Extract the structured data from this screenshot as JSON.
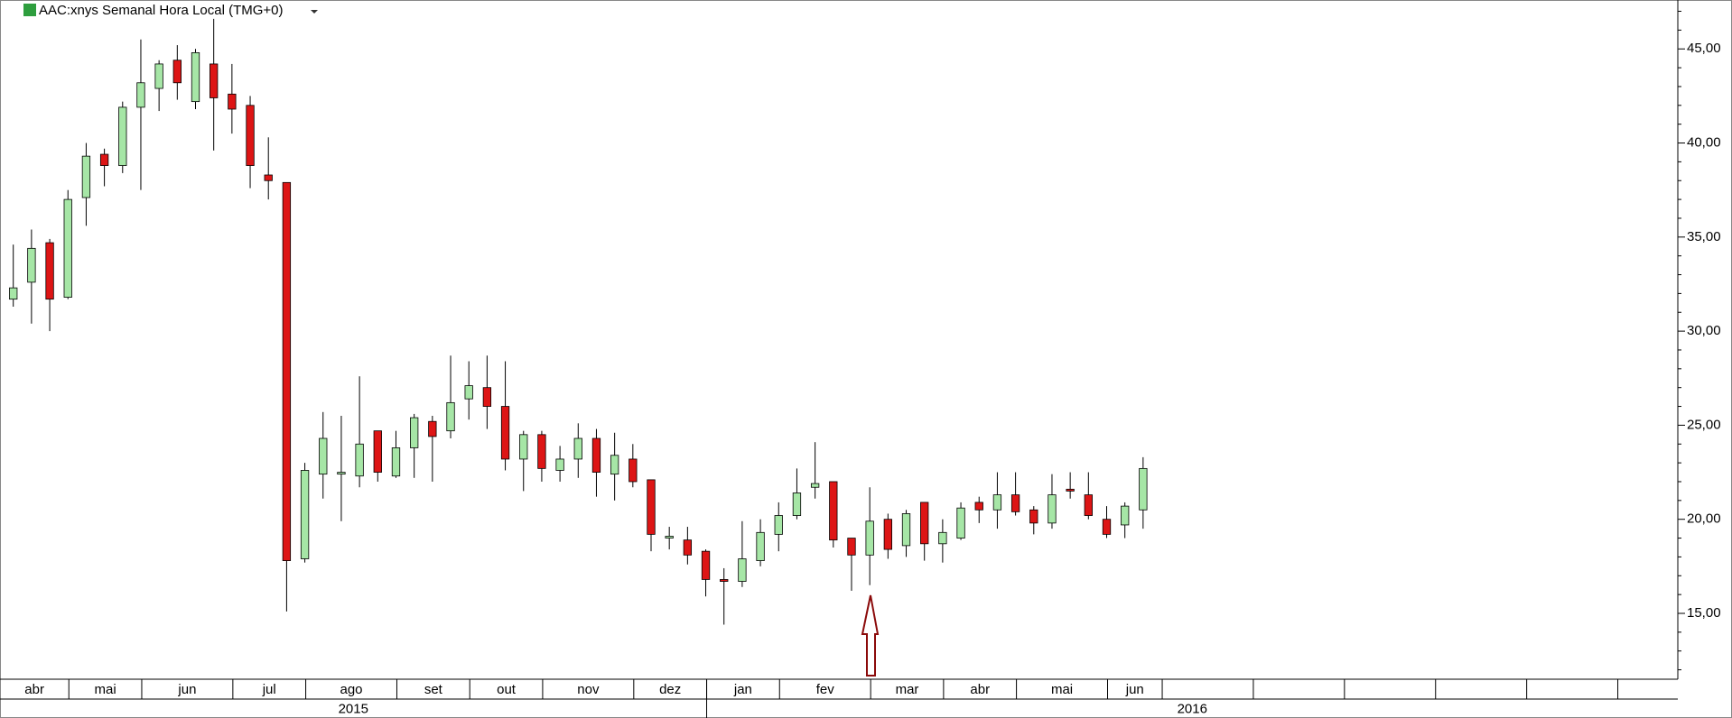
{
  "chart_data": {
    "type": "candlestick",
    "title": "AAC:xnys Semanal Hora Local (TMG+0)",
    "x": [
      "2015-04",
      "2015-04",
      "2015-04",
      "2015-05",
      "2015-05",
      "2015-05",
      "2015-05",
      "2015-06",
      "2015-06",
      "2015-06",
      "2015-06",
      "2015-06",
      "2015-07",
      "2015-07",
      "2015-07",
      "2015-07",
      "2015-08",
      "2015-08",
      "2015-08",
      "2015-08",
      "2015-08",
      "2015-09",
      "2015-09",
      "2015-09",
      "2015-09",
      "2015-10",
      "2015-10",
      "2015-10",
      "2015-10",
      "2015-11",
      "2015-11",
      "2015-11",
      "2015-11",
      "2015-11",
      "2015-12",
      "2015-12",
      "2015-12",
      "2015-12",
      "2016-01",
      "2016-01",
      "2016-01",
      "2016-01",
      "2016-02",
      "2016-02",
      "2016-02",
      "2016-02",
      "2016-02",
      "2016-03",
      "2016-03",
      "2016-03",
      "2016-03",
      "2016-04",
      "2016-04",
      "2016-04",
      "2016-04",
      "2016-05",
      "2016-05",
      "2016-05",
      "2016-05",
      "2016-05",
      "2016-06",
      "2016-06",
      "2016-06"
    ],
    "open": [
      31.7,
      32.6,
      34.7,
      31.8,
      37.1,
      39.4,
      38.8,
      41.9,
      42.9,
      44.4,
      42.2,
      44.2,
      42.6,
      42.0,
      38.3,
      37.9,
      17.9,
      22.4,
      22.4,
      22.3,
      24.7,
      22.3,
      23.8,
      25.2,
      24.7,
      26.4,
      27.0,
      26.0,
      23.2,
      24.5,
      22.6,
      23.2,
      24.3,
      22.4,
      23.2,
      22.1,
      19.0,
      18.9,
      18.3,
      16.8,
      16.7,
      17.8,
      19.2,
      20.2,
      21.7,
      22.0,
      19.0,
      18.1,
      20.0,
      18.6,
      20.9,
      18.7,
      19.0,
      20.9,
      20.5,
      21.3,
      20.5,
      19.8,
      21.6,
      21.3,
      20.0,
      19.7,
      20.5
    ],
    "high": [
      34.6,
      35.4,
      34.9,
      37.5,
      40.0,
      39.7,
      42.2,
      45.5,
      44.4,
      45.2,
      45.0,
      46.6,
      44.2,
      42.5,
      40.3,
      37.9,
      23.0,
      25.7,
      25.5,
      27.6,
      24.7,
      24.7,
      25.6,
      25.5,
      28.7,
      28.4,
      28.7,
      28.4,
      24.7,
      24.7,
      23.9,
      25.1,
      24.8,
      24.6,
      24.0,
      22.1,
      19.6,
      19.6,
      18.4,
      17.4,
      19.9,
      20.0,
      20.9,
      22.7,
      24.1,
      22.0,
      19.0,
      21.7,
      20.3,
      20.5,
      20.9,
      20.0,
      20.9,
      21.2,
      22.5,
      22.5,
      20.7,
      22.4,
      22.5,
      22.5,
      20.7,
      20.9,
      23.3
    ],
    "low": [
      31.3,
      30.4,
      30.0,
      31.7,
      35.6,
      37.7,
      38.4,
      37.5,
      41.7,
      42.3,
      41.8,
      39.6,
      40.5,
      37.6,
      37.0,
      15.1,
      17.7,
      21.1,
      19.9,
      21.7,
      22.0,
      22.2,
      22.2,
      22.0,
      24.3,
      25.3,
      24.8,
      22.6,
      21.5,
      22.0,
      22.0,
      22.2,
      21.2,
      21.0,
      21.7,
      18.3,
      18.4,
      17.6,
      15.9,
      14.4,
      16.4,
      17.5,
      18.3,
      20.0,
      21.1,
      18.5,
      16.2,
      16.5,
      17.9,
      18.0,
      17.8,
      17.7,
      18.9,
      19.8,
      19.5,
      20.2,
      19.2,
      19.5,
      21.1,
      20.0,
      19.0,
      19.0,
      19.5
    ],
    "close": [
      32.3,
      34.4,
      31.7,
      37.0,
      39.3,
      38.8,
      41.9,
      43.2,
      44.2,
      43.2,
      44.8,
      42.4,
      41.8,
      38.8,
      38.0,
      17.8,
      22.6,
      24.3,
      22.5,
      24.0,
      22.5,
      23.8,
      25.4,
      24.4,
      26.2,
      27.1,
      26.0,
      23.2,
      24.5,
      22.7,
      23.2,
      24.3,
      22.5,
      23.4,
      22.0,
      19.2,
      19.1,
      18.1,
      16.8,
      16.7,
      17.9,
      19.3,
      20.2,
      21.4,
      21.9,
      18.9,
      18.1,
      19.9,
      18.4,
      20.3,
      18.7,
      19.3,
      20.6,
      20.5,
      21.3,
      20.4,
      19.8,
      21.3,
      21.5,
      20.2,
      19.2,
      20.7,
      22.7
    ],
    "up_color": "#a6e6a6",
    "down_color": "#dd1515",
    "months": [
      "abr",
      "mai",
      "jun",
      "jul",
      "ago",
      "set",
      "out",
      "nov",
      "dez",
      "jan",
      "fev",
      "mar",
      "abr",
      "mai",
      "jun",
      null,
      null,
      null,
      null,
      null,
      null
    ],
    "years": [
      "2015",
      "2016"
    ],
    "ylim": [
      11.5,
      47.6
    ],
    "yticks": [
      {
        "value": 15,
        "label": "15,00"
      },
      {
        "value": 20,
        "label": "20,00"
      },
      {
        "value": 25,
        "label": "25,00"
      },
      {
        "value": 30,
        "label": "30,00"
      },
      {
        "value": 35,
        "label": "35,00"
      },
      {
        "value": 40,
        "label": "40,00"
      },
      {
        "value": 45,
        "label": "45,00"
      }
    ],
    "grid": false
  }
}
